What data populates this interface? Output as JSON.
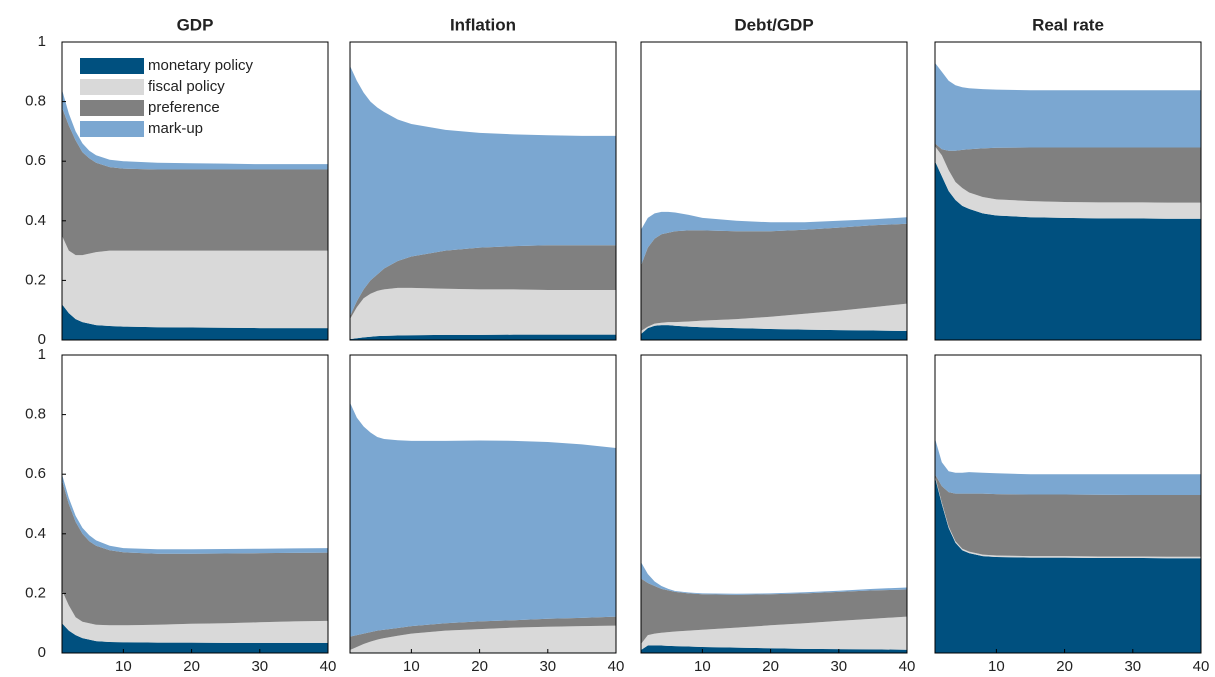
{
  "chart_data": [
    {
      "type": "area",
      "title": "GDP",
      "legend": "upper left",
      "x": [
        1,
        2,
        3,
        4,
        5,
        6,
        8,
        10,
        15,
        20,
        25,
        30,
        35,
        40
      ],
      "xlim": [
        1,
        40
      ],
      "ylim": [
        0,
        1
      ],
      "yticks": [
        0,
        0.2,
        0.4,
        0.6,
        0.8,
        1
      ],
      "series": [
        {
          "name": "monetary policy",
          "color": "#00507f",
          "values": [
            0.12,
            0.09,
            0.07,
            0.06,
            0.055,
            0.05,
            0.047,
            0.045,
            0.043,
            0.042,
            0.041,
            0.04,
            0.04,
            0.04
          ]
        },
        {
          "name": "fiscal policy",
          "color": "#d9d9d9",
          "values": [
            0.23,
            0.21,
            0.215,
            0.225,
            0.235,
            0.245,
            0.253,
            0.255,
            0.257,
            0.258,
            0.259,
            0.26,
            0.26,
            0.26
          ]
        },
        {
          "name": "preference",
          "color": "#808080",
          "values": [
            0.43,
            0.42,
            0.385,
            0.345,
            0.32,
            0.3,
            0.28,
            0.275,
            0.272,
            0.272,
            0.272,
            0.272,
            0.272,
            0.272
          ]
        },
        {
          "name": "mark-up",
          "color": "#7ba7d1",
          "values": [
            0.06,
            0.04,
            0.03,
            0.03,
            0.025,
            0.025,
            0.025,
            0.025,
            0.023,
            0.021,
            0.02,
            0.018,
            0.018,
            0.018
          ]
        }
      ]
    },
    {
      "type": "area",
      "title": "Inflation",
      "x": [
        1,
        2,
        3,
        4,
        5,
        6,
        8,
        10,
        15,
        20,
        25,
        30,
        35,
        40
      ],
      "xlim": [
        1,
        40
      ],
      "ylim": [
        0,
        1
      ],
      "series": [
        {
          "color": "#00507f",
          "values": [
            0.003,
            0.006,
            0.009,
            0.011,
            0.013,
            0.014,
            0.015,
            0.016,
            0.017,
            0.017,
            0.018,
            0.018,
            0.018,
            0.018
          ]
        },
        {
          "color": "#d9d9d9",
          "values": [
            0.067,
            0.104,
            0.131,
            0.144,
            0.152,
            0.156,
            0.16,
            0.159,
            0.155,
            0.153,
            0.152,
            0.15,
            0.15,
            0.15
          ]
        },
        {
          "color": "#808080",
          "values": [
            0.01,
            0.02,
            0.03,
            0.045,
            0.055,
            0.07,
            0.09,
            0.105,
            0.128,
            0.14,
            0.145,
            0.15,
            0.15,
            0.15
          ]
        },
        {
          "color": "#7ba7d1",
          "values": [
            0.84,
            0.74,
            0.66,
            0.6,
            0.56,
            0.525,
            0.475,
            0.445,
            0.405,
            0.385,
            0.375,
            0.369,
            0.367,
            0.367
          ]
        }
      ]
    },
    {
      "type": "area",
      "title": "Debt/GDP",
      "x": [
        1,
        2,
        3,
        4,
        5,
        6,
        8,
        10,
        15,
        20,
        25,
        30,
        35,
        40
      ],
      "xlim": [
        1,
        40
      ],
      "ylim": [
        0,
        1
      ],
      "series": [
        {
          "color": "#00507f",
          "values": [
            0.02,
            0.04,
            0.048,
            0.05,
            0.05,
            0.048,
            0.045,
            0.043,
            0.04,
            0.037,
            0.035,
            0.033,
            0.032,
            0.03
          ]
        },
        {
          "color": "#d9d9d9",
          "values": [
            0.01,
            0.005,
            0.007,
            0.008,
            0.01,
            0.012,
            0.017,
            0.022,
            0.03,
            0.041,
            0.053,
            0.065,
            0.078,
            0.092
          ]
        },
        {
          "color": "#808080",
          "values": [
            0.22,
            0.265,
            0.285,
            0.297,
            0.3,
            0.305,
            0.306,
            0.303,
            0.295,
            0.287,
            0.282,
            0.279,
            0.275,
            0.268
          ]
        },
        {
          "color": "#7ba7d1",
          "values": [
            0.12,
            0.1,
            0.085,
            0.075,
            0.07,
            0.063,
            0.052,
            0.042,
            0.035,
            0.03,
            0.025,
            0.023,
            0.02,
            0.022
          ]
        }
      ]
    },
    {
      "type": "area",
      "title": "Real rate",
      "x": [
        1,
        2,
        3,
        4,
        5,
        6,
        8,
        10,
        15,
        20,
        25,
        30,
        35,
        40
      ],
      "xlim": [
        1,
        40
      ],
      "ylim": [
        0,
        1
      ],
      "series": [
        {
          "color": "#00507f",
          "values": [
            0.6,
            0.55,
            0.5,
            0.47,
            0.45,
            0.44,
            0.425,
            0.418,
            0.412,
            0.41,
            0.408,
            0.408,
            0.407,
            0.407
          ]
        },
        {
          "color": "#d9d9d9",
          "values": [
            0.05,
            0.07,
            0.07,
            0.06,
            0.06,
            0.055,
            0.055,
            0.054,
            0.054,
            0.053,
            0.054,
            0.054,
            0.054,
            0.054
          ]
        },
        {
          "color": "#808080",
          "values": [
            0.01,
            0.02,
            0.065,
            0.105,
            0.128,
            0.145,
            0.163,
            0.173,
            0.18,
            0.183,
            0.184,
            0.184,
            0.185,
            0.185
          ]
        },
        {
          "color": "#7ba7d1",
          "values": [
            0.27,
            0.26,
            0.235,
            0.22,
            0.21,
            0.205,
            0.199,
            0.195,
            0.192,
            0.192,
            0.192,
            0.192,
            0.192,
            0.192
          ]
        }
      ]
    },
    {
      "type": "area",
      "x": [
        1,
        2,
        3,
        4,
        5,
        6,
        8,
        10,
        15,
        20,
        25,
        30,
        35,
        40
      ],
      "xlim": [
        1,
        40
      ],
      "xticks": [
        10,
        20,
        30,
        40
      ],
      "ylim": [
        0,
        1
      ],
      "yticks": [
        0,
        0.2,
        0.4,
        0.6,
        0.8,
        1
      ],
      "series": [
        {
          "color": "#00507f",
          "values": [
            0.1,
            0.075,
            0.06,
            0.05,
            0.045,
            0.04,
            0.037,
            0.036,
            0.035,
            0.035,
            0.034,
            0.034,
            0.034,
            0.034
          ]
        },
        {
          "color": "#d9d9d9",
          "values": [
            0.11,
            0.085,
            0.06,
            0.055,
            0.055,
            0.055,
            0.056,
            0.057,
            0.06,
            0.063,
            0.066,
            0.069,
            0.072,
            0.074
          ]
        },
        {
          "color": "#808080",
          "values": [
            0.37,
            0.34,
            0.32,
            0.295,
            0.275,
            0.265,
            0.252,
            0.245,
            0.238,
            0.235,
            0.234,
            0.232,
            0.23,
            0.229
          ]
        },
        {
          "color": "#7ba7d1",
          "values": [
            0.02,
            0.02,
            0.02,
            0.02,
            0.02,
            0.018,
            0.015,
            0.014,
            0.015,
            0.015,
            0.015,
            0.015,
            0.015,
            0.015
          ]
        }
      ]
    },
    {
      "type": "area",
      "x": [
        1,
        2,
        3,
        4,
        5,
        6,
        8,
        10,
        15,
        20,
        25,
        30,
        35,
        40
      ],
      "xlim": [
        1,
        40
      ],
      "xticks": [
        10,
        20,
        30,
        40
      ],
      "ylim": [
        0,
        1
      ],
      "series": [
        {
          "color": "#00507f",
          "values": [
            0.002,
            0.002,
            0.002,
            0.002,
            0.002,
            0.002,
            0.002,
            0.002,
            0.002,
            0.002,
            0.002,
            0.002,
            0.002,
            0.002
          ]
        },
        {
          "color": "#d9d9d9",
          "values": [
            0.008,
            0.018,
            0.028,
            0.036,
            0.043,
            0.048,
            0.056,
            0.063,
            0.073,
            0.078,
            0.083,
            0.086,
            0.088,
            0.09
          ]
        },
        {
          "color": "#808080",
          "values": [
            0.045,
            0.04,
            0.035,
            0.032,
            0.03,
            0.028,
            0.026,
            0.025,
            0.025,
            0.026,
            0.025,
            0.027,
            0.028,
            0.03
          ]
        },
        {
          "color": "#7ba7d1",
          "values": [
            0.785,
            0.73,
            0.695,
            0.67,
            0.65,
            0.64,
            0.63,
            0.622,
            0.612,
            0.607,
            0.602,
            0.593,
            0.582,
            0.566
          ]
        }
      ]
    },
    {
      "type": "area",
      "x": [
        1,
        2,
        3,
        4,
        5,
        6,
        8,
        10,
        15,
        20,
        25,
        30,
        35,
        40
      ],
      "xlim": [
        1,
        40
      ],
      "xticks": [
        10,
        20,
        30,
        40
      ],
      "ylim": [
        0,
        1
      ],
      "series": [
        {
          "color": "#00507f",
          "values": [
            0.01,
            0.025,
            0.025,
            0.025,
            0.024,
            0.023,
            0.022,
            0.02,
            0.018,
            0.016,
            0.014,
            0.013,
            0.012,
            0.011
          ]
        },
        {
          "color": "#d9d9d9",
          "values": [
            0.02,
            0.035,
            0.04,
            0.043,
            0.046,
            0.049,
            0.053,
            0.058,
            0.067,
            0.077,
            0.086,
            0.095,
            0.103,
            0.111
          ]
        },
        {
          "color": "#808080",
          "values": [
            0.22,
            0.175,
            0.16,
            0.147,
            0.14,
            0.133,
            0.125,
            0.119,
            0.11,
            0.104,
            0.1,
            0.097,
            0.095,
            0.091
          ]
        },
        {
          "color": "#7ba7d1",
          "values": [
            0.055,
            0.03,
            0.015,
            0.01,
            0.005,
            0.003,
            0.003,
            0.003,
            0.004,
            0.003,
            0.004,
            0.004,
            0.005,
            0.007
          ]
        }
      ]
    },
    {
      "type": "area",
      "x": [
        1,
        2,
        3,
        4,
        5,
        6,
        8,
        10,
        15,
        20,
        25,
        30,
        35,
        40
      ],
      "xlim": [
        1,
        40
      ],
      "xticks": [
        10,
        20,
        30,
        40
      ],
      "ylim": [
        0,
        1
      ],
      "series": [
        {
          "color": "#00507f",
          "values": [
            0.59,
            0.5,
            0.42,
            0.37,
            0.345,
            0.335,
            0.325,
            0.322,
            0.32,
            0.32,
            0.319,
            0.319,
            0.318,
            0.318
          ]
        },
        {
          "color": "#d9d9d9",
          "values": [
            0.005,
            0.005,
            0.005,
            0.005,
            0.005,
            0.005,
            0.005,
            0.005,
            0.005,
            0.005,
            0.005,
            0.005,
            0.005,
            0.005
          ]
        },
        {
          "color": "#808080",
          "values": [
            0.005,
            0.055,
            0.115,
            0.16,
            0.185,
            0.195,
            0.205,
            0.206,
            0.207,
            0.207,
            0.207,
            0.206,
            0.207,
            0.207
          ]
        },
        {
          "color": "#7ba7d1",
          "values": [
            0.12,
            0.08,
            0.07,
            0.07,
            0.07,
            0.072,
            0.07,
            0.07,
            0.068,
            0.068,
            0.069,
            0.07,
            0.07,
            0.07
          ]
        }
      ]
    }
  ]
}
